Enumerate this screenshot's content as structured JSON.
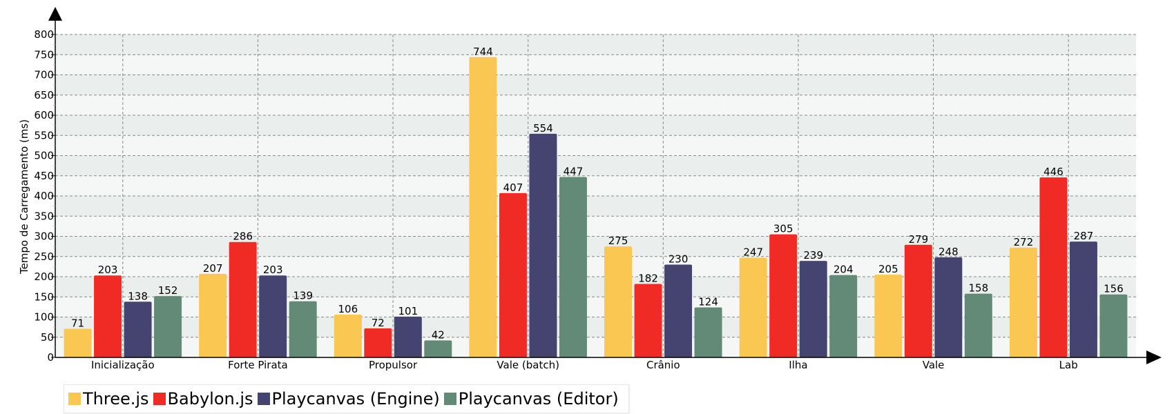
{
  "chart_data": {
    "type": "bar",
    "categories": [
      "Inicialização",
      "Forte Pirata",
      "Propulsor",
      "Vale (batch)",
      "Crânio",
      "Ilha",
      "Vale",
      "Lab"
    ],
    "series": [
      {
        "name": "Three.js",
        "color": "#f9c752",
        "values": [
          71,
          207,
          106,
          744,
          275,
          247,
          205,
          272
        ]
      },
      {
        "name": "Babylon.js",
        "color": "#f02a24",
        "values": [
          203,
          286,
          72,
          407,
          182,
          305,
          279,
          446
        ]
      },
      {
        "name": "Playcanvas (Engine)",
        "color": "#454470",
        "values": [
          138,
          203,
          101,
          554,
          230,
          239,
          248,
          287
        ]
      },
      {
        "name": "Playcanvas (Editor)",
        "color": "#628a77",
        "values": [
          152,
          139,
          42,
          447,
          124,
          204,
          158,
          156
        ]
      }
    ],
    "ylabel": "Tempo de Carregamento (ms)",
    "xlabel": "",
    "ylim": [
      0,
      800
    ],
    "yticks": [
      0,
      50,
      100,
      150,
      200,
      250,
      300,
      350,
      400,
      450,
      500,
      550,
      600,
      650,
      700,
      750,
      800
    ],
    "grid": true,
    "legend_position": "bottom-left",
    "colors": {
      "band_light": "#f4f7f6",
      "band_dark": "#eaefee",
      "grid": "#888888",
      "axis": "#000000"
    }
  }
}
